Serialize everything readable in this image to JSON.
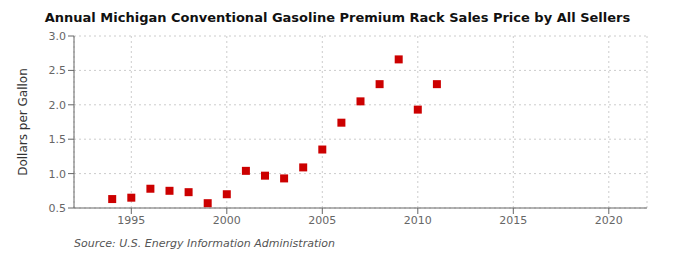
{
  "chart_data": {
    "type": "scatter",
    "title": "Annual Michigan Conventional Gasoline Premium Rack Sales Price by All Sellers",
    "ylabel": "Dollars per Gallon",
    "annotations": [
      "Source: U.S. Energy Information Administration"
    ],
    "x": [
      1994,
      1995,
      1996,
      1997,
      1998,
      1999,
      2000,
      2001,
      2002,
      2003,
      2004,
      2005,
      2006,
      2007,
      2008,
      2009,
      2010,
      2011
    ],
    "values": [
      0.63,
      0.65,
      0.78,
      0.75,
      0.73,
      0.57,
      0.7,
      1.04,
      0.97,
      0.93,
      1.09,
      1.35,
      1.74,
      2.05,
      2.3,
      2.66,
      1.93,
      2.3
    ],
    "color": "#cc0000",
    "marker": "square",
    "xlim": [
      1992,
      2022
    ],
    "ylim": [
      0.5,
      3.0
    ],
    "xticks": [
      1995,
      2000,
      2005,
      2010,
      2015,
      2020
    ],
    "yticks": [
      0.5,
      {
        "value": 1.0,
        "label": "1.0"
      },
      1.5,
      {
        "value": 2.0,
        "label": "2.0"
      },
      2.5,
      {
        "value": 3.0,
        "label": "3.0"
      }
    ],
    "grid": true
  }
}
